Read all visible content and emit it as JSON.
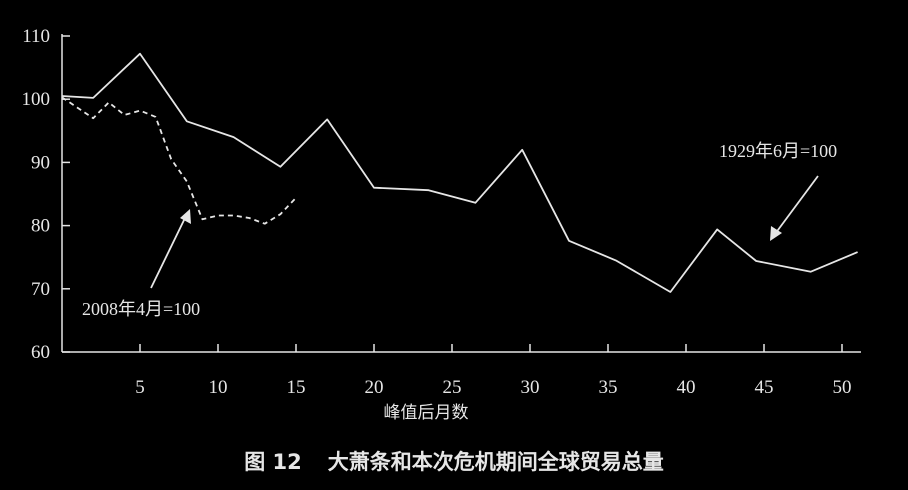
{
  "chart_data": {
    "type": "line",
    "title": "",
    "xlabel": "峰值后月数",
    "ylabel": "",
    "xlim": [
      0,
      52
    ],
    "ylim": [
      60,
      110
    ],
    "xticks": [
      5,
      10,
      15,
      20,
      25,
      30,
      35,
      40,
      45,
      50
    ],
    "yticks": [
      60,
      70,
      80,
      90,
      100,
      110
    ],
    "grid": false,
    "series": [
      {
        "name": "1929年6月=100",
        "style": "solid",
        "x": [
          0,
          2,
          5,
          8,
          11,
          14,
          17,
          20,
          23.5,
          26.5,
          29.5,
          32.5,
          35.5,
          39,
          42,
          44.5,
          48,
          51
        ],
        "y": [
          100.5,
          100.2,
          107.2,
          96.5,
          94,
          89.3,
          96.8,
          86,
          85.6,
          83.6,
          92,
          77.6,
          74.5,
          69.5,
          79.4,
          74.4,
          72.7,
          75.8
        ]
      },
      {
        "name": "2008年4月=100",
        "style": "dashed",
        "x": [
          0,
          2,
          3,
          4,
          5,
          6,
          7,
          8,
          9,
          10,
          11,
          12,
          13,
          14,
          15
        ],
        "y": [
          100.3,
          97,
          99.5,
          97.5,
          98.2,
          97.2,
          90.5,
          87,
          81,
          81.6,
          81.6,
          81.2,
          80.3,
          81.8,
          84.4
        ]
      }
    ],
    "annotations": [
      {
        "text": "1929年6月=100"
      },
      {
        "text": "2008年4月=100"
      }
    ]
  },
  "caption": {
    "number": "图 12",
    "text": "大萧条和本次危机期间全球贸易总量"
  },
  "colors": {
    "background": "#000000",
    "foreground": "#e6e6e6"
  }
}
